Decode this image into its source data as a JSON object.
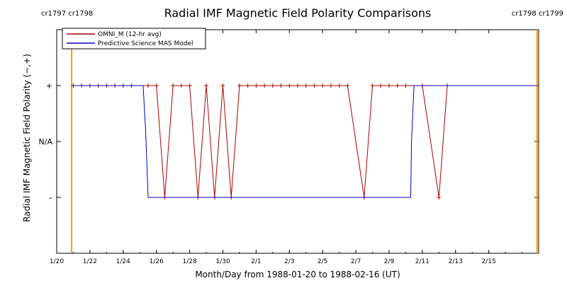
{
  "chart_data": {
    "type": "line",
    "title": "Radial IMF Magnetic Field Polarity Comparisons",
    "xlabel": "Month/Day from 1988-01-20 to 1988-02-16 (UT)",
    "ylabel": "Radial IMF Magnetic Field Polarity (−,+)",
    "xlim": [
      "1988-01-20",
      "1988-02-18"
    ],
    "x_ticks": [
      {
        "date": "1988-01-20",
        "label": "1/20"
      },
      {
        "date": "1988-01-22",
        "label": "1/22"
      },
      {
        "date": "1988-01-24",
        "label": "1/24"
      },
      {
        "date": "1988-01-26",
        "label": "1/26"
      },
      {
        "date": "1988-01-28",
        "label": "1/28"
      },
      {
        "date": "1988-01-30",
        "label": "1/30"
      },
      {
        "date": "1988-02-01",
        "label": "2/1"
      },
      {
        "date": "1988-02-03",
        "label": "2/3"
      },
      {
        "date": "1988-02-05",
        "label": "2/5"
      },
      {
        "date": "1988-02-07",
        "label": "2/7"
      },
      {
        "date": "1988-02-09",
        "label": "2/9"
      },
      {
        "date": "1988-02-11",
        "label": "2/11"
      },
      {
        "date": "1988-02-13",
        "label": "2/13"
      },
      {
        "date": "1988-02-15",
        "label": "2/15"
      }
    ],
    "y_levels": [
      {
        "value": 1,
        "label": "+"
      },
      {
        "value": 0,
        "label": "N/A"
      },
      {
        "value": -1,
        "label": "–"
      }
    ],
    "ylim": [
      -2,
      2
    ],
    "carrington_markers": [
      {
        "date": "1988-01-20.9",
        "label": "cr1797 cr1798",
        "side": "left",
        "color": "#ff9900"
      },
      {
        "date": "1988-02-17.9",
        "label": "cr1798 cr1799",
        "side": "right",
        "color": "#ff9900"
      }
    ],
    "legend": {
      "position": "top-left"
    },
    "series": [
      {
        "name": "OMNI_M (12-hr avg)",
        "color": "#aa0000",
        "marker": "+",
        "points": [
          [
            "1988-01-21.00",
            1
          ],
          [
            "1988-01-21.50",
            1
          ],
          [
            "1988-01-22.00",
            1
          ],
          [
            "1988-01-22.50",
            1
          ],
          [
            "1988-01-23.00",
            1
          ],
          [
            "1988-01-23.50",
            1
          ],
          [
            "1988-01-24.00",
            1
          ],
          [
            "1988-01-24.50",
            1
          ],
          [
            "1988-01-25.50",
            1
          ],
          [
            "1988-01-26.00",
            1
          ],
          [
            "1988-01-26.50",
            -1
          ],
          [
            "1988-01-27.00",
            1
          ],
          [
            "1988-01-27.50",
            1
          ],
          [
            "1988-01-28.00",
            1
          ],
          [
            "1988-01-28.50",
            -1
          ],
          [
            "1988-01-29.00",
            1
          ],
          [
            "1988-01-29.50",
            -1
          ],
          [
            "1988-01-30.00",
            1
          ],
          [
            "1988-01-30.50",
            -1
          ],
          [
            "1988-01-31.00",
            1
          ],
          [
            "1988-01-31.50",
            1
          ],
          [
            "1988-02-01.00",
            1
          ],
          [
            "1988-02-01.50",
            1
          ],
          [
            "1988-02-02.00",
            1
          ],
          [
            "1988-02-02.50",
            1
          ],
          [
            "1988-02-03.00",
            1
          ],
          [
            "1988-02-03.50",
            1
          ],
          [
            "1988-02-04.00",
            1
          ],
          [
            "1988-02-04.50",
            1
          ],
          [
            "1988-02-05.00",
            1
          ],
          [
            "1988-02-05.50",
            1
          ],
          [
            "1988-02-06.00",
            1
          ],
          [
            "1988-02-06.50",
            1
          ],
          [
            "1988-02-07.50",
            -1
          ],
          [
            "1988-02-08.00",
            1
          ],
          [
            "1988-02-08.50",
            1
          ],
          [
            "1988-02-09.00",
            1
          ],
          [
            "1988-02-09.50",
            1
          ],
          [
            "1988-02-10.00",
            1
          ],
          [
            "1988-02-11.00",
            1
          ],
          [
            "1988-02-12.00",
            -1
          ],
          [
            "1988-02-12.50",
            1
          ]
        ]
      },
      {
        "name": "Predictive Science MAS Model",
        "color": "#0000cc",
        "points": [
          [
            "1988-01-20.90",
            1
          ],
          [
            "1988-01-25.20",
            1
          ],
          [
            "1988-01-25.35",
            0.2
          ],
          [
            "1988-01-25.50",
            -1
          ],
          [
            "1988-02-10.30",
            -1
          ],
          [
            "1988-02-10.35",
            0
          ],
          [
            "1988-02-10.50",
            1
          ],
          [
            "1988-02-17.90",
            1
          ]
        ]
      }
    ]
  }
}
